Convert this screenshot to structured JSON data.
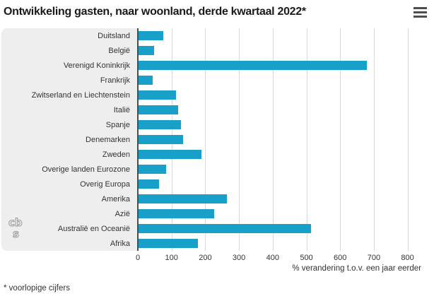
{
  "title": "Ontwikkeling gasten, naar woonland, derde kwartaal 2022*",
  "footnote": "* voorlopige cijfers",
  "menu": {
    "icon": "hamburger-icon"
  },
  "logo": {
    "name": "cbs-logo",
    "line1": "cb",
    "line2": "s"
  },
  "colors": {
    "bar": "#18a0c8",
    "label_panel_bg": "#eeeeee",
    "gridline": "#d9d9d9",
    "axis_line": "#4d4d4d",
    "title_text": "#1a1a1a",
    "body_text": "#333333"
  },
  "chart_data": {
    "type": "bar",
    "orientation": "horizontal",
    "title": "Ontwikkeling gasten, naar woonland, derde kwartaal 2022*",
    "categories": [
      "Duitsland",
      "België",
      "Verenigd Koninkrijk",
      "Frankrijk",
      "Zwitserland en Liechtenstein",
      "Italië",
      "Spanje",
      "Denemarken",
      "Zweden",
      "Overige landen Eurozone",
      "Overig Europa",
      "Amerika",
      "Azië",
      "Australië en Oceanië",
      "Afrika"
    ],
    "values": [
      73,
      45,
      673,
      41,
      110,
      117,
      126,
      132,
      186,
      82,
      61,
      260,
      224,
      510,
      175
    ],
    "xlabel": "% verandering t.o.v. een jaar eerder",
    "ylabel": "",
    "xlim": [
      0,
      870
    ],
    "xticks": [
      0,
      100,
      200,
      300,
      400,
      500,
      600,
      700,
      800
    ],
    "grid": true,
    "legend": false
  }
}
